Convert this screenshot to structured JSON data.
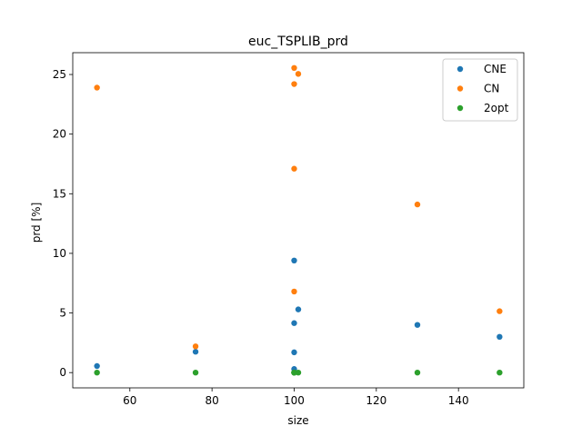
{
  "chart_data": {
    "type": "scatter",
    "title": "euc_TSPLIB_prd",
    "xlabel": "size",
    "ylabel": "prd [%]",
    "xlim": [
      46.1,
      155.9
    ],
    "ylim": [
      -1.28,
      26.83
    ],
    "xticks": [
      60,
      80,
      100,
      120,
      140
    ],
    "yticks": [
      0,
      5,
      10,
      15,
      20,
      25
    ],
    "grid": false,
    "legend_position": "top-right",
    "series": [
      {
        "name": "CNE",
        "color": "#1f77b4",
        "points": [
          {
            "x": 52,
            "y": 0.55
          },
          {
            "x": 76,
            "y": 1.75
          },
          {
            "x": 100,
            "y": 9.4
          },
          {
            "x": 100,
            "y": 4.15
          },
          {
            "x": 100,
            "y": 1.7
          },
          {
            "x": 100,
            "y": 0.3
          },
          {
            "x": 101,
            "y": 5.3
          },
          {
            "x": 130,
            "y": 4.0
          },
          {
            "x": 150,
            "y": 3.0
          }
        ]
      },
      {
        "name": "CN",
        "color": "#ff7f0e",
        "points": [
          {
            "x": 52,
            "y": 23.9
          },
          {
            "x": 76,
            "y": 2.2
          },
          {
            "x": 100,
            "y": 25.55
          },
          {
            "x": 100,
            "y": 24.2
          },
          {
            "x": 100,
            "y": 17.1
          },
          {
            "x": 100,
            "y": 6.8
          },
          {
            "x": 101,
            "y": 25.05
          },
          {
            "x": 130,
            "y": 14.1
          },
          {
            "x": 150,
            "y": 5.15
          }
        ]
      },
      {
        "name": "2opt",
        "color": "#2ca02c",
        "points": [
          {
            "x": 52,
            "y": 0.0
          },
          {
            "x": 76,
            "y": 0.0
          },
          {
            "x": 100,
            "y": 0.0
          },
          {
            "x": 100,
            "y": 0.0
          },
          {
            "x": 100,
            "y": 0.0
          },
          {
            "x": 100,
            "y": 0.0
          },
          {
            "x": 101,
            "y": 0.0
          },
          {
            "x": 130,
            "y": 0.0
          },
          {
            "x": 150,
            "y": 0.0
          }
        ]
      }
    ]
  }
}
